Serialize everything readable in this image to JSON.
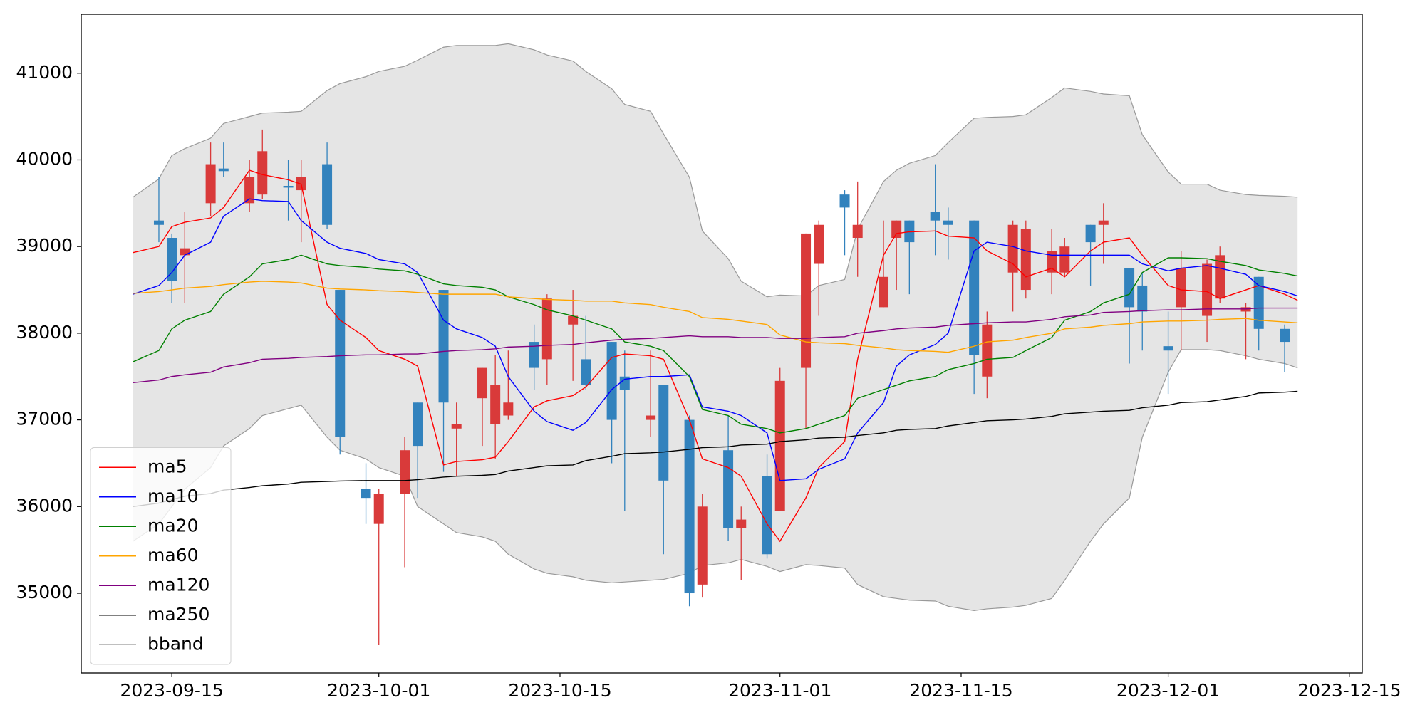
{
  "chart_data": {
    "type": "candlestick",
    "xlim": [
      "2023-09-08",
      "2023-12-16"
    ],
    "xticks": [
      "2023-09-15",
      "2023-10-01",
      "2023-10-15",
      "2023-11-01",
      "2023-11-15",
      "2023-12-01",
      "2023-12-15"
    ],
    "ylim": [
      34080,
      41680
    ],
    "yticks": [
      35000,
      36000,
      37000,
      38000,
      39000,
      40000,
      41000
    ],
    "legend": "lower left",
    "candles": {
      "up_color": "#d93a3a",
      "down_color": "#3282bd",
      "x": [
        "2023-09-14",
        "2023-09-15",
        "2023-09-16",
        "2023-09-18",
        "2023-09-19",
        "2023-09-21",
        "2023-09-22",
        "2023-09-24",
        "2023-09-25",
        "2023-09-27",
        "2023-09-28",
        "2023-09-30",
        "2023-10-01",
        "2023-10-03",
        "2023-10-04",
        "2023-10-06",
        "2023-10-07",
        "2023-10-09",
        "2023-10-10",
        "2023-10-11",
        "2023-10-13",
        "2023-10-14",
        "2023-10-16",
        "2023-10-17",
        "2023-10-19",
        "2023-10-20",
        "2023-10-22",
        "2023-10-23",
        "2023-10-25",
        "2023-10-26",
        "2023-10-28",
        "2023-10-29",
        "2023-10-31",
        "2023-11-01",
        "2023-11-03",
        "2023-11-04",
        "2023-11-06",
        "2023-11-07",
        "2023-11-09",
        "2023-11-10",
        "2023-11-11",
        "2023-11-13",
        "2023-11-14",
        "2023-11-16",
        "2023-11-17",
        "2023-11-19",
        "2023-11-20",
        "2023-11-22",
        "2023-11-23",
        "2023-11-25",
        "2023-11-26",
        "2023-11-28",
        "2023-11-29",
        "2023-12-01",
        "2023-12-02",
        "2023-12-04",
        "2023-12-05",
        "2023-12-07",
        "2023-12-08",
        "2023-12-10"
      ],
      "open": [
        39300,
        39100,
        38900,
        39500,
        39900,
        39500,
        39600,
        39700,
        39650,
        39950,
        38500,
        36200,
        35800,
        36150,
        37200,
        38500,
        36900,
        37250,
        36950,
        37050,
        37900,
        37700,
        38100,
        37700,
        37900,
        37500,
        37000,
        37400,
        37000,
        35100,
        36650,
        35750,
        36350,
        35950,
        37600,
        38800,
        39600,
        39100,
        38300,
        39100,
        39300,
        39400,
        39300,
        39300,
        37500,
        38700,
        38500,
        38700,
        38700,
        39250,
        39250,
        38750,
        38550,
        37850,
        38300,
        38200,
        38400,
        38250,
        38650,
        38050
      ],
      "high": [
        39800,
        39150,
        39400,
        40200,
        40200,
        40000,
        40350,
        40000,
        40000,
        40200,
        38500,
        36500,
        36200,
        36800,
        37200,
        38500,
        37200,
        37600,
        37750,
        37800,
        38100,
        38450,
        38500,
        38200,
        37900,
        37800,
        37800,
        37400,
        37050,
        36150,
        37050,
        36000,
        36600,
        37600,
        39150,
        39300,
        39650,
        39750,
        39300,
        39300,
        39300,
        39950,
        39450,
        39300,
        38250,
        39300,
        39300,
        39200,
        39100,
        39250,
        39500,
        38750,
        38700,
        38250,
        38950,
        38850,
        39000,
        38350,
        38650,
        38100
      ],
      "low": [
        39050,
        38350,
        38350,
        39350,
        39800,
        39400,
        39550,
        39300,
        39050,
        39200,
        36600,
        35800,
        34400,
        35300,
        36100,
        36400,
        36350,
        36700,
        36550,
        37000,
        37350,
        37400,
        37450,
        37350,
        36500,
        35950,
        36800,
        35450,
        34850,
        34950,
        35600,
        35150,
        35400,
        35950,
        36900,
        38200,
        38900,
        38650,
        38300,
        38500,
        38450,
        38900,
        38850,
        37300,
        37250,
        38250,
        38400,
        38450,
        38650,
        38550,
        38800,
        37650,
        37800,
        37300,
        37800,
        37900,
        38350,
        37700,
        37800,
        37550
      ],
      "close": [
        39250,
        38600,
        38980,
        39950,
        39870,
        39800,
        40100,
        39680,
        39800,
        39250,
        36800,
        36100,
        36150,
        36650,
        36700,
        37200,
        36950,
        37600,
        37400,
        37200,
        37600,
        38400,
        38200,
        37400,
        37000,
        37350,
        37050,
        36300,
        35000,
        36000,
        35750,
        35850,
        35450,
        37450,
        39150,
        39250,
        39450,
        39250,
        38650,
        39300,
        39050,
        39300,
        39250,
        37750,
        38100,
        39250,
        39200,
        38950,
        39000,
        39050,
        39300,
        38300,
        38250,
        37800,
        38750,
        38800,
        38900,
        38300,
        38050,
        37900
      ]
    },
    "x": [
      "2023-09-12",
      "2023-09-14",
      "2023-09-15",
      "2023-09-16",
      "2023-09-18",
      "2023-09-19",
      "2023-09-21",
      "2023-09-22",
      "2023-09-24",
      "2023-09-25",
      "2023-09-27",
      "2023-09-28",
      "2023-09-30",
      "2023-10-01",
      "2023-10-03",
      "2023-10-04",
      "2023-10-06",
      "2023-10-07",
      "2023-10-09",
      "2023-10-10",
      "2023-10-11",
      "2023-10-13",
      "2023-10-14",
      "2023-10-16",
      "2023-10-17",
      "2023-10-19",
      "2023-10-20",
      "2023-10-22",
      "2023-10-23",
      "2023-10-25",
      "2023-10-26",
      "2023-10-28",
      "2023-10-29",
      "2023-10-31",
      "2023-11-01",
      "2023-11-03",
      "2023-11-04",
      "2023-11-06",
      "2023-11-07",
      "2023-11-09",
      "2023-11-10",
      "2023-11-11",
      "2023-11-13",
      "2023-11-14",
      "2023-11-16",
      "2023-11-17",
      "2023-11-19",
      "2023-11-20",
      "2023-11-22",
      "2023-11-23",
      "2023-11-25",
      "2023-11-26",
      "2023-11-28",
      "2023-11-29",
      "2023-12-01",
      "2023-12-02",
      "2023-12-04",
      "2023-12-05",
      "2023-12-07",
      "2023-12-08",
      "2023-12-10",
      "2023-12-11"
    ],
    "series": [
      {
        "name": "ma5",
        "color": "#ff0000",
        "values": [
          38930,
          39000,
          39230,
          39280,
          39330,
          39450,
          39880,
          39830,
          39770,
          39720,
          38330,
          38150,
          37950,
          37800,
          37700,
          37620,
          36480,
          36520,
          36540,
          36570,
          36750,
          37150,
          37220,
          37280,
          37380,
          37720,
          37760,
          37740,
          37700,
          37000,
          36550,
          36450,
          36350,
          35800,
          35600,
          36100,
          36450,
          36750,
          37700,
          38900,
          39150,
          39170,
          39180,
          39120,
          39100,
          38950,
          38800,
          38650,
          38750,
          38650,
          38950,
          39050,
          39100,
          38900,
          38550,
          38500,
          38480,
          38400,
          38500,
          38550,
          38450,
          38380
        ]
      },
      {
        "name": "ma10",
        "color": "#0000ff",
        "values": [
          38450,
          38550,
          38700,
          38900,
          39050,
          39350,
          39550,
          39530,
          39520,
          39300,
          39050,
          38980,
          38920,
          38850,
          38800,
          38700,
          38150,
          38050,
          37950,
          37850,
          37500,
          37100,
          36980,
          36880,
          36970,
          37350,
          37470,
          37500,
          37500,
          37520,
          37150,
          37100,
          37050,
          36850,
          36300,
          36320,
          36430,
          36550,
          36850,
          37200,
          37620,
          37750,
          37870,
          38000,
          38950,
          39050,
          39000,
          38950,
          38900,
          38900,
          38900,
          38900,
          38900,
          38800,
          38720,
          38750,
          38780,
          38750,
          38680,
          38550,
          38480,
          38430
        ]
      },
      {
        "name": "ma20",
        "color": "#008000",
        "values": [
          37670,
          37800,
          38050,
          38150,
          38250,
          38450,
          38650,
          38800,
          38850,
          38900,
          38800,
          38780,
          38760,
          38740,
          38720,
          38680,
          38570,
          38550,
          38530,
          38500,
          38420,
          38330,
          38270,
          38200,
          38150,
          38050,
          37900,
          37850,
          37800,
          37500,
          37120,
          37050,
          36950,
          36900,
          36850,
          36900,
          36950,
          37050,
          37250,
          37350,
          37400,
          37450,
          37500,
          37580,
          37650,
          37700,
          37720,
          37800,
          37950,
          38150,
          38250,
          38350,
          38450,
          38700,
          38870,
          38870,
          38860,
          38830,
          38780,
          38730,
          38690,
          38660
        ]
      },
      {
        "name": "ma60",
        "color": "#ffa500",
        "values": [
          38460,
          38480,
          38500,
          38520,
          38540,
          38560,
          38590,
          38600,
          38590,
          38580,
          38520,
          38510,
          38500,
          38490,
          38480,
          38470,
          38450,
          38450,
          38450,
          38450,
          38420,
          38400,
          38390,
          38380,
          38370,
          38370,
          38350,
          38330,
          38300,
          38250,
          38180,
          38160,
          38140,
          38100,
          37980,
          37900,
          37890,
          37880,
          37860,
          37830,
          37810,
          37800,
          37790,
          37780,
          37850,
          37900,
          37920,
          37950,
          38000,
          38050,
          38070,
          38090,
          38110,
          38130,
          38140,
          38140,
          38150,
          38160,
          38170,
          38150,
          38130,
          38120
        ]
      },
      {
        "name": "ma120",
        "color": "#800080",
        "values": [
          37430,
          37460,
          37500,
          37520,
          37550,
          37610,
          37660,
          37700,
          37710,
          37720,
          37730,
          37740,
          37750,
          37750,
          37760,
          37760,
          37790,
          37800,
          37810,
          37820,
          37840,
          37850,
          37860,
          37870,
          37890,
          37920,
          37930,
          37940,
          37950,
          37970,
          37960,
          37960,
          37950,
          37950,
          37940,
          37940,
          37950,
          37960,
          38000,
          38030,
          38050,
          38060,
          38070,
          38090,
          38110,
          38120,
          38130,
          38130,
          38160,
          38190,
          38210,
          38240,
          38250,
          38260,
          38270,
          38270,
          38280,
          38280,
          38280,
          38290,
          38290,
          38290
        ]
      },
      {
        "name": "ma250",
        "color": "#000000",
        "values": [
          36000,
          36040,
          36080,
          36120,
          36150,
          36190,
          36220,
          36240,
          36260,
          36280,
          36290,
          36295,
          36300,
          36300,
          36300,
          36310,
          36340,
          36350,
          36360,
          36370,
          36410,
          36450,
          36470,
          36480,
          36530,
          36580,
          36610,
          36620,
          36630,
          36660,
          36680,
          36690,
          36710,
          36720,
          36750,
          36770,
          36790,
          36800,
          36820,
          36850,
          36880,
          36890,
          36900,
          36930,
          36970,
          36990,
          37000,
          37010,
          37040,
          37070,
          37090,
          37100,
          37110,
          37140,
          37170,
          37200,
          37210,
          37230,
          37270,
          37310,
          37320,
          37330
        ]
      }
    ],
    "bband": {
      "name": "bband",
      "color": "#999999",
      "fill": "#e5e5e5",
      "upper": [
        39570,
        39780,
        40050,
        40130,
        40250,
        40420,
        40500,
        40540,
        40550,
        40560,
        40800,
        40880,
        40960,
        41020,
        41080,
        41150,
        41300,
        41320,
        41320,
        41320,
        41340,
        41270,
        41210,
        41140,
        41020,
        40820,
        40640,
        40560,
        40300,
        39800,
        39180,
        38860,
        38600,
        38420,
        38440,
        38430,
        38550,
        38620,
        39200,
        39750,
        39880,
        39960,
        40050,
        40200,
        40480,
        40490,
        40500,
        40520,
        40720,
        40830,
        40790,
        40760,
        40740,
        40290,
        39860,
        39720,
        39720,
        39650,
        39600,
        39590,
        39580,
        39570
      ],
      "lower": [
        35600,
        35800,
        36000,
        36200,
        36450,
        36700,
        36900,
        37050,
        37130,
        37170,
        36800,
        36650,
        36550,
        36450,
        36350,
        36000,
        35800,
        35700,
        35650,
        35600,
        35450,
        35280,
        35230,
        35190,
        35150,
        35120,
        35130,
        35150,
        35160,
        35230,
        35320,
        35350,
        35390,
        35310,
        35250,
        35330,
        35320,
        35290,
        35100,
        34960,
        34940,
        34920,
        34910,
        34850,
        34800,
        34820,
        34840,
        34860,
        34940,
        35150,
        35600,
        35800,
        36100,
        36800,
        37550,
        37810,
        37810,
        37800,
        37740,
        37700,
        37650,
        37600
      ]
    }
  }
}
